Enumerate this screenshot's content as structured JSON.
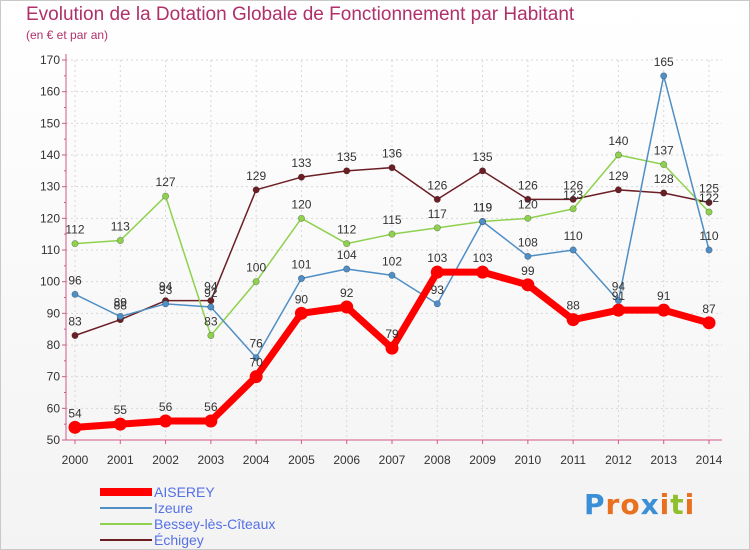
{
  "header": {
    "title": "Evolution de la Dotation Globale de Fonctionnement par Habitant",
    "subtitle": "(en € et par an)"
  },
  "logo": {
    "text": "Proxiti",
    "letters": [
      "P",
      "r",
      "o",
      "x",
      "i",
      "t",
      "i"
    ],
    "colors": [
      "#3a8fd6",
      "#e8701f",
      "#e8701f",
      "#3a8fd6",
      "#e8701f",
      "#8fbf2a",
      "#e8701f"
    ]
  },
  "chart_data": {
    "type": "line",
    "title": "Evolution de la Dotation Globale de Fonctionnement par Habitant",
    "subtitle": "(en € et par an)",
    "xlabel": "",
    "ylabel": "",
    "x": [
      2000,
      2001,
      2002,
      2003,
      2004,
      2005,
      2006,
      2007,
      2008,
      2009,
      2010,
      2011,
      2012,
      2013,
      2014
    ],
    "ylim": [
      50,
      170
    ],
    "yticks": [
      50,
      60,
      70,
      80,
      90,
      100,
      110,
      120,
      130,
      140,
      150,
      160,
      170
    ],
    "grid": true,
    "legend_position": "bottom-left",
    "series": [
      {
        "name": "AISEREY",
        "color": "#ff0000",
        "values": [
          54,
          55,
          56,
          56,
          70,
          90,
          92,
          79,
          103,
          103,
          99,
          88,
          91,
          91,
          87
        ],
        "labels": [
          "54",
          "55",
          "56",
          "56",
          "70",
          "90",
          "92",
          "79",
          "103",
          "103",
          "99",
          "88",
          "91",
          "91",
          "87"
        ]
      },
      {
        "name": "Izeure",
        "color": "#4f8fc6",
        "values": [
          96,
          89,
          93,
          92,
          76,
          101,
          104,
          102,
          93,
          119,
          108,
          110,
          94,
          165,
          110
        ],
        "labels": [
          "96",
          "89",
          "93",
          "92",
          "76",
          "101",
          "104",
          "102",
          "93",
          "119",
          "108",
          "110",
          "94",
          "165",
          "110"
        ]
      },
      {
        "name": "Bessey-lès-Cîteaux",
        "color": "#8fd14f",
        "values": [
          112,
          113,
          127,
          83,
          100,
          120,
          112,
          115,
          117,
          119,
          120,
          123,
          140,
          137,
          122
        ],
        "labels": [
          "112",
          "113",
          "127",
          "83",
          "100",
          "120",
          "112",
          "115",
          "117",
          "119",
          "120",
          "123",
          "140",
          "137",
          "122"
        ]
      },
      {
        "name": "Échigey",
        "color": "#6b1f24",
        "values": [
          83,
          88,
          94,
          94,
          129,
          133,
          135,
          136,
          126,
          135,
          126,
          126,
          129,
          128,
          125
        ],
        "labels": [
          "83",
          "88",
          "94",
          "94",
          "129",
          "133",
          "135",
          "136",
          "126",
          "135",
          "126",
          "126",
          "129",
          "128",
          "125"
        ]
      }
    ]
  }
}
